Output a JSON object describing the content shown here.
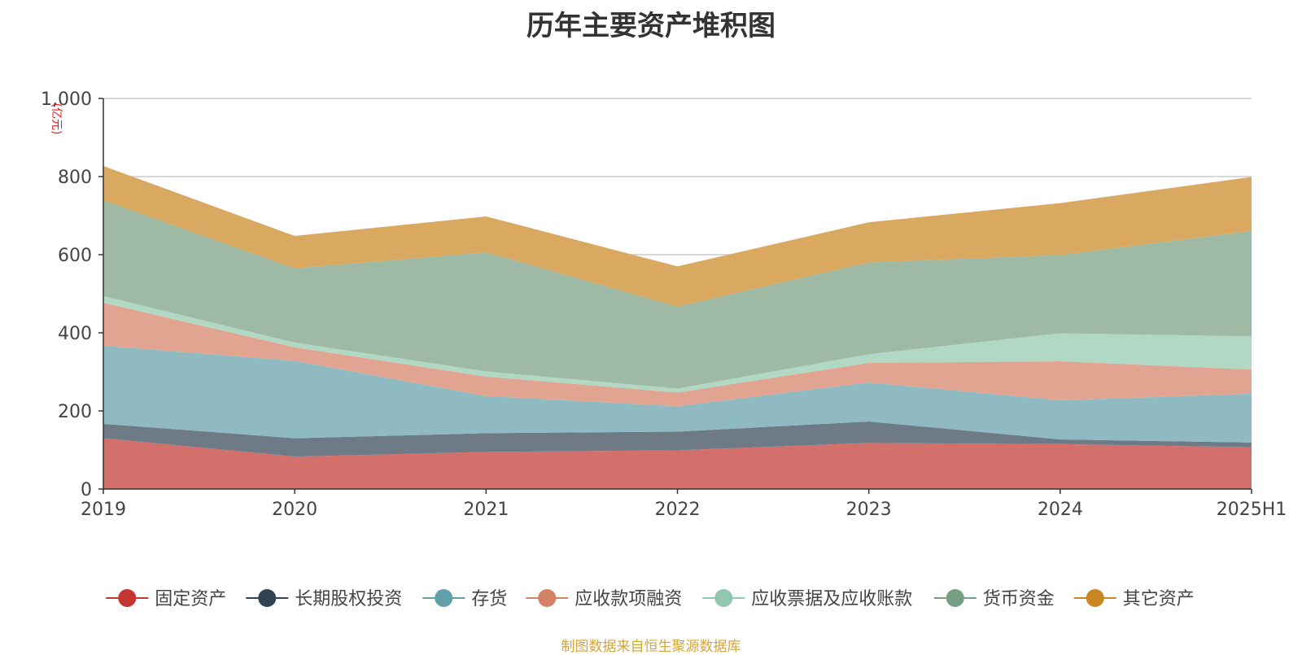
{
  "title": "历年主要资产堆积图",
  "source": "制图数据来自恒生聚源数据库",
  "chart_data": {
    "type": "area",
    "stacked": true,
    "categories": [
      "2019",
      "2020",
      "2021",
      "2022",
      "2023",
      "2024",
      "2025H1"
    ],
    "y_unit": "(亿元)",
    "ylim": [
      0,
      1000
    ],
    "y_ticks": [
      0,
      200,
      400,
      600,
      800,
      1000
    ],
    "y_tick_labels": [
      "0",
      "200",
      "400",
      "600",
      "800",
      "1,000"
    ],
    "grid": true,
    "legend_position": "bottom",
    "series": [
      {
        "name": "固定资产",
        "values": [
          130,
          83,
          95,
          99,
          118,
          115,
          107
        ],
        "color": "#d4706c",
        "legend_color": "#c23531"
      },
      {
        "name": "长期股权投资",
        "values": [
          37,
          47,
          48,
          48,
          55,
          12,
          12
        ],
        "color": "#6e7b86",
        "legend_color": "#2f4554"
      },
      {
        "name": "存货",
        "values": [
          200,
          198,
          95,
          65,
          100,
          100,
          125
        ],
        "color": "#8fbac1",
        "legend_color": "#61a0a8"
      },
      {
        "name": "应收款项融资",
        "values": [
          110,
          35,
          50,
          35,
          50,
          100,
          62
        ],
        "color": "#e1a491",
        "legend_color": "#d48265"
      },
      {
        "name": "应收票据及应收账款",
        "values": [
          17,
          12,
          13,
          10,
          22,
          72,
          85
        ],
        "color": "#b0d8c5",
        "legend_color": "#91c7ae"
      },
      {
        "name": "货币资金",
        "values": [
          245,
          190,
          305,
          210,
          235,
          200,
          270
        ],
        "color": "#9eb9a4",
        "legend_color": "#749f83"
      },
      {
        "name": "其它资产",
        "values": [
          88,
          83,
          92,
          103,
          103,
          133,
          138
        ],
        "color": "#d9a962",
        "legend_color": "#ca8622"
      }
    ]
  }
}
